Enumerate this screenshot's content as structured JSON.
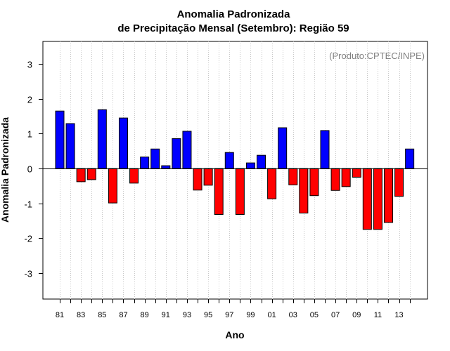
{
  "chart_data": {
    "type": "bar",
    "title_line1": "Anomalia Padronizada",
    "title_line2": "de Precipitação Mensal (Setembro): Região 59",
    "xlabel": "Ano",
    "ylabel": "Anomalia Padronizada",
    "credit": "(Produto:CPTEC/INPE)",
    "ylim": [
      -3.75,
      3.65
    ],
    "yticks": [
      -3,
      -2,
      -1,
      0,
      1,
      2,
      3
    ],
    "positive_color": "#0000ff",
    "negative_color": "#ff0000",
    "categories": [
      "81",
      "82",
      "83",
      "84",
      "85",
      "86",
      "87",
      "88",
      "89",
      "90",
      "91",
      "92",
      "93",
      "94",
      "95",
      "96",
      "97",
      "98",
      "99",
      "00",
      "01",
      "02",
      "03",
      "04",
      "05",
      "06",
      "07",
      "08",
      "09",
      "10",
      "11",
      "12",
      "13",
      "14"
    ],
    "xtick_labels": [
      "81",
      "83",
      "85",
      "87",
      "89",
      "91",
      "93",
      "95",
      "97",
      "99",
      "01",
      "03",
      "05",
      "07",
      "09",
      "11",
      "13"
    ],
    "values": [
      1.65,
      1.29,
      -0.38,
      -0.32,
      1.69,
      -0.99,
      1.45,
      -0.42,
      0.33,
      0.56,
      0.08,
      0.86,
      1.07,
      -0.62,
      -0.48,
      -1.32,
      0.46,
      -1.32,
      0.16,
      0.38,
      -0.87,
      1.17,
      -0.47,
      -1.28,
      -0.78,
      1.09,
      -0.63,
      -0.52,
      -0.25,
      -1.75,
      -1.75,
      -1.55,
      -0.8,
      0.56
    ]
  }
}
